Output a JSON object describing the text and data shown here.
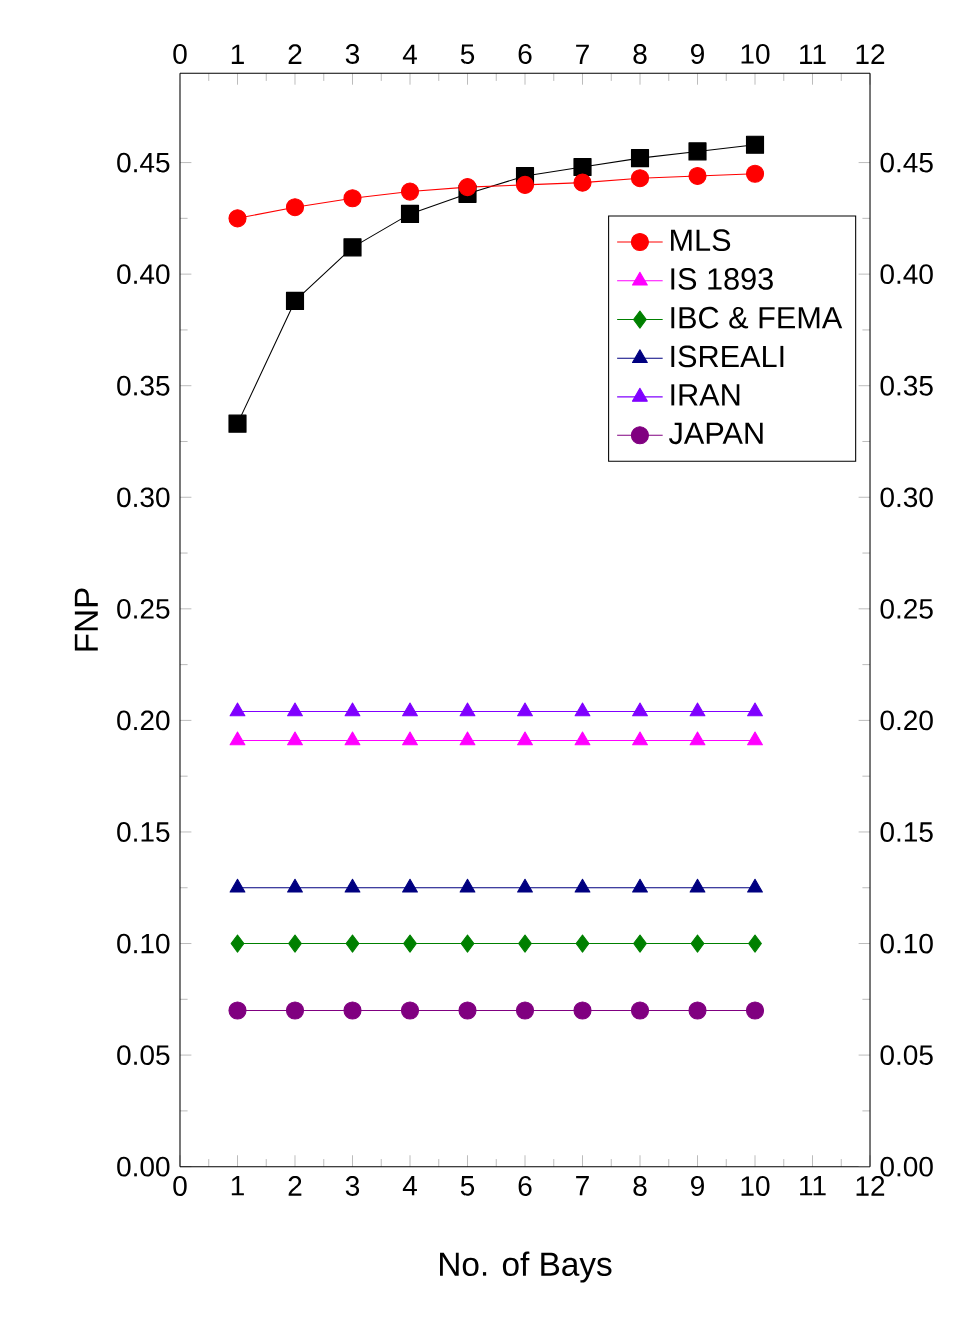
{
  "chart_data": {
    "type": "line",
    "xlabel": "No. of Bays",
    "ylabel": "FNP",
    "x": [
      1,
      2,
      3,
      4,
      5,
      6,
      7,
      8,
      9,
      10
    ],
    "xlim": [
      0,
      12
    ],
    "xticks": [
      0,
      1,
      2,
      3,
      4,
      5,
      6,
      7,
      8,
      9,
      10,
      11,
      12
    ],
    "x2lim": [
      0,
      12
    ],
    "x2ticks": [
      0,
      1,
      2,
      3,
      4,
      5,
      6,
      7,
      8,
      9,
      10,
      11,
      12
    ],
    "ylim": [
      0,
      0.49
    ],
    "yticks": [
      {
        "value": 0,
        "label": "0.00"
      },
      0.05,
      {
        "value": 0.1,
        "label": "0.10"
      },
      0.15,
      {
        "value": 0.2,
        "label": "0.20"
      },
      0.25,
      {
        "value": 0.3,
        "label": "0.30"
      },
      0.35,
      {
        "value": 0.4,
        "label": "0.40"
      },
      0.45
    ],
    "y2lim": [
      0,
      0.49
    ],
    "y2ticks": [
      {
        "value": 0,
        "label": "0.00"
      },
      0.05,
      {
        "value": 0.1,
        "label": "0.10"
      },
      0.15,
      {
        "value": 0.2,
        "label": "0.20"
      },
      0.25,
      {
        "value": 0.3,
        "label": "0.30"
      },
      0.35,
      {
        "value": 0.4,
        "label": "0.40"
      },
      0.45
    ],
    "legend": "right",
    "grid": false,
    "line_style": "solid",
    "series": [
      {
        "color": "#000000",
        "marker": "square",
        "values": [
          0.333,
          0.388,
          0.412,
          0.427,
          0.436,
          0.444,
          0.448,
          0.452,
          0.455,
          0.458
        ]
      },
      {
        "name": "MLS",
        "color": "#ff0000",
        "marker": "circle",
        "values": [
          0.425,
          0.43,
          0.434,
          0.437,
          0.439,
          0.44,
          0.441,
          0.443,
          0.444,
          0.445
        ]
      },
      {
        "name": "IS 1893",
        "color": "#ff00ff",
        "marker": "triangle",
        "values": [
          0.191,
          0.191,
          0.191,
          0.191,
          0.191,
          0.191,
          0.191,
          0.191,
          0.191,
          0.191
        ]
      },
      {
        "name": "IBC & FEMA",
        "color": "#008000",
        "marker": "diamond",
        "values": [
          0.1,
          0.1,
          0.1,
          0.1,
          0.1,
          0.1,
          0.1,
          0.1,
          0.1,
          0.1
        ]
      },
      {
        "name": "ISREALI",
        "color": "#000080",
        "marker": "triangle",
        "values": [
          0.125,
          0.125,
          0.125,
          0.125,
          0.125,
          0.125,
          0.125,
          0.125,
          0.125,
          0.125
        ]
      },
      {
        "name": "IRAN",
        "color": "#8000ff",
        "marker": "triangle",
        "values": [
          0.204,
          0.204,
          0.204,
          0.204,
          0.204,
          0.204,
          0.204,
          0.204,
          0.204,
          0.204
        ]
      },
      {
        "name": "JAPAN",
        "color": "#800080",
        "marker": "circle",
        "values": [
          0.07,
          0.07,
          0.07,
          0.07,
          0.07,
          0.07,
          0.07,
          0.07,
          0.07,
          0.07
        ]
      }
    ]
  }
}
